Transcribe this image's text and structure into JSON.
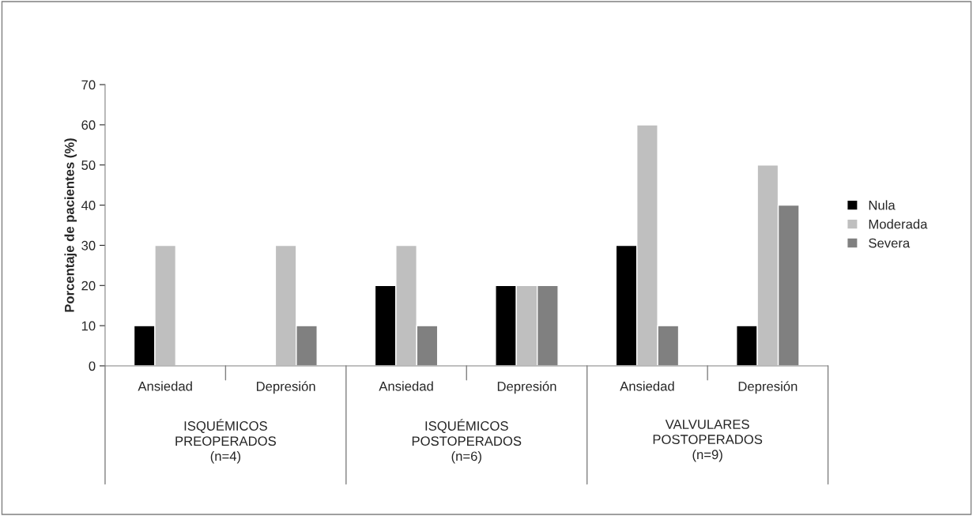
{
  "chart_data": {
    "type": "bar",
    "ylabel": "Porcentaje de pacientes (%)",
    "categories": [
      "Ansiedad",
      "Depresión",
      "Ansiedad",
      "Depresión",
      "Ansiedad",
      "Depresión"
    ],
    "series": [
      {
        "name": "Nula",
        "color": "#000000",
        "values": [
          10,
          null,
          20,
          20,
          30,
          10
        ]
      },
      {
        "name": "Moderada",
        "color": "#bfbfbf",
        "values": [
          30,
          30,
          30,
          20,
          60,
          50
        ]
      },
      {
        "name": "Severa",
        "color": "#808080",
        "values": [
          null,
          10,
          10,
          20,
          10,
          40
        ]
      }
    ],
    "ylim": [
      0,
      70
    ],
    "yticks": [
      0,
      10,
      20,
      30,
      40,
      50,
      60,
      70
    ],
    "grid": false,
    "legend": "right",
    "annotations": [
      "ISQUÉMICOS\nPREOPERADOS\n(n=4)",
      "ISQUÉMICOS\nPOSTOPERADOS\n(n=6)",
      "VALVULARES\nPOSTOPERADOS\n(n=9)"
    ]
  }
}
